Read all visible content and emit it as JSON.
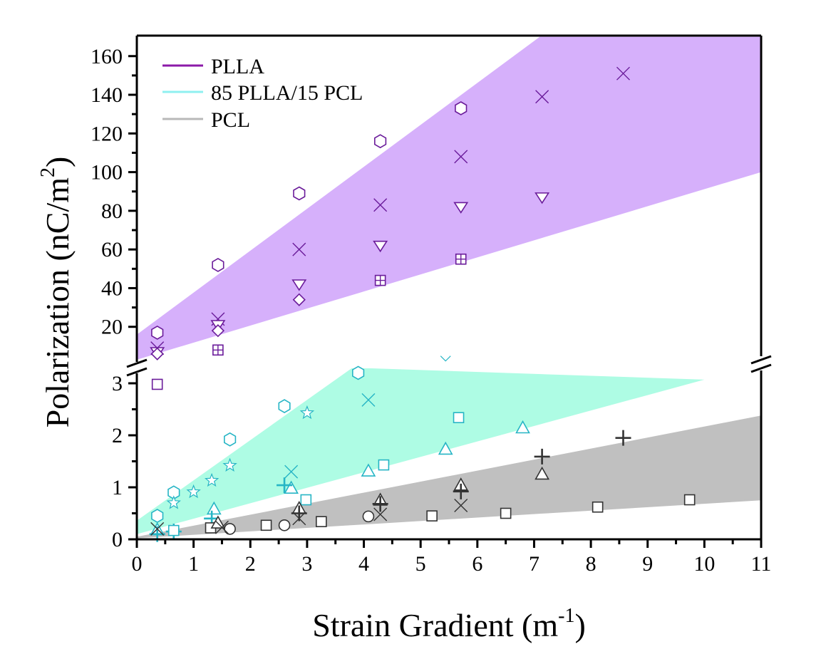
{
  "chart_data": {
    "type": "scatter",
    "title": "",
    "xlabel": "Strain Gradient (m",
    "xlabel_sup": "-1",
    "xlabel_tail": ")",
    "ylabel": "Polarization (nC/m",
    "ylabel_sup": "2",
    "ylabel_tail": ")",
    "xlim": [
      0,
      11
    ],
    "x_ticks": [
      "0",
      "1",
      "2",
      "3",
      "4",
      "5",
      "6",
      "7",
      "8",
      "9",
      "10",
      "11"
    ],
    "y_break": true,
    "ylim_lower": [
      0,
      3.3
    ],
    "ylim_upper": [
      10,
      170
    ],
    "y_ticks_lower": [
      "0",
      "1",
      "2",
      "3"
    ],
    "y_ticks_upper": [
      "20",
      "40",
      "60",
      "80",
      "100",
      "120",
      "140",
      "160"
    ],
    "grid": false,
    "legend_position": "top-left",
    "legend": [
      {
        "label": "PLLA",
        "color": "#8b1aa8"
      },
      {
        "label": "85 PLLA/15 PCL",
        "color": "#8ff0f0"
      },
      {
        "label": "PCL",
        "color": "#b8b8b8"
      }
    ],
    "bands": [
      {
        "series": "PLLA",
        "panel": "upper",
        "fill": "#d6b0fb",
        "polygon": [
          [
            0,
            4
          ],
          [
            0,
            16
          ],
          [
            7.1,
            170
          ],
          [
            11,
            170
          ],
          [
            11,
            100
          ],
          [
            0,
            3
          ]
        ]
      },
      {
        "series": "85 PLLA/15 PCL",
        "panel": "lower",
        "fill": "#aefce4",
        "polygon": [
          [
            0,
            0.05
          ],
          [
            0,
            0.36
          ],
          [
            3.8,
            3.3
          ],
          [
            10,
            3.07
          ],
          [
            0,
            0.1
          ]
        ]
      },
      {
        "series": "PCL",
        "panel": "lower",
        "fill": "#c0c0c0",
        "polygon": [
          [
            0,
            0.02
          ],
          [
            0,
            0.05
          ],
          [
            11,
            2.38
          ],
          [
            11,
            0.75
          ]
        ]
      }
    ],
    "series": [
      {
        "name": "PLLA hexagon",
        "group": "PLLA",
        "marker": "hexagon",
        "color": "#6a1b9a",
        "points": [
          [
            0.36,
            17
          ],
          [
            1.43,
            52
          ],
          [
            2.86,
            89
          ],
          [
            4.29,
            116
          ],
          [
            5.71,
            133
          ]
        ]
      },
      {
        "name": "PLLA cross",
        "group": "PLLA",
        "marker": "x",
        "color": "#6a1b9a",
        "points": [
          [
            0.36,
            9
          ],
          [
            1.43,
            24
          ],
          [
            2.86,
            60
          ],
          [
            4.29,
            83
          ],
          [
            5.71,
            108
          ],
          [
            7.14,
            139
          ],
          [
            8.57,
            151
          ]
        ]
      },
      {
        "name": "PLLA down-triangle",
        "group": "PLLA",
        "marker": "triangle-down",
        "color": "#6a1b9a",
        "points": [
          [
            0.36,
            7
          ],
          [
            1.43,
            21
          ],
          [
            2.86,
            42
          ],
          [
            4.29,
            62
          ],
          [
            5.71,
            82
          ],
          [
            7.14,
            87
          ]
        ]
      },
      {
        "name": "PLLA diamond",
        "group": "PLLA",
        "marker": "diamond",
        "color": "#6a1b9a",
        "points": [
          [
            0.36,
            6
          ],
          [
            1.43,
            18
          ],
          [
            2.86,
            34
          ]
        ]
      },
      {
        "name": "PLLA square-plus",
        "group": "PLLA",
        "marker": "square-plus",
        "color": "#6a1b9a",
        "points": [
          [
            1.43,
            8
          ],
          [
            4.29,
            44
          ],
          [
            5.71,
            55
          ]
        ]
      },
      {
        "name": "PLLA square (lower)",
        "group": "PLLA",
        "marker": "square",
        "color": "#6a1b9a",
        "panel": "lower",
        "points": [
          [
            0.36,
            2.98
          ]
        ]
      },
      {
        "name": "Blend hexagon",
        "group": "85 PLLA/15 PCL",
        "marker": "hexagon",
        "color": "#26b5c5",
        "points": [
          [
            0.36,
            0.45
          ],
          [
            0.65,
            0.9
          ],
          [
            1.64,
            1.92
          ],
          [
            2.6,
            2.56
          ],
          [
            3.9,
            3.2
          ]
        ]
      },
      {
        "name": "Blend star",
        "group": "85 PLLA/15 PCL",
        "marker": "star",
        "color": "#26b5c5",
        "points": [
          [
            0.65,
            0.7
          ],
          [
            1.0,
            0.91
          ],
          [
            1.32,
            1.13
          ],
          [
            1.64,
            1.42
          ],
          [
            3.0,
            2.43
          ]
        ]
      },
      {
        "name": "Blend triangle",
        "group": "85 PLLA/15 PCL",
        "marker": "triangle",
        "color": "#26b5c5",
        "points": [
          [
            0.36,
            0.17
          ],
          [
            1.36,
            0.57
          ],
          [
            2.72,
            0.97
          ],
          [
            4.08,
            1.3
          ],
          [
            5.44,
            1.72
          ],
          [
            6.8,
            2.13
          ]
        ]
      },
      {
        "name": "Blend cross",
        "group": "85 PLLA/15 PCL",
        "marker": "x",
        "color": "#26b5c5",
        "points": [
          [
            2.72,
            1.3
          ],
          [
            4.08,
            2.68
          ]
        ]
      },
      {
        "name": "Blend plus",
        "group": "85 PLLA/15 PCL",
        "marker": "plus",
        "color": "#26b5c5",
        "points": [
          [
            0.36,
            0.1
          ],
          [
            0.65,
            0.15
          ],
          [
            1.32,
            0.4
          ],
          [
            2.6,
            1.04
          ]
        ]
      },
      {
        "name": "Blend square",
        "group": "85 PLLA/15 PCL",
        "marker": "square",
        "color": "#26b5c5",
        "points": [
          [
            0.65,
            0.17
          ],
          [
            2.98,
            0.76
          ],
          [
            4.35,
            1.43
          ],
          [
            5.67,
            2.34
          ]
        ]
      },
      {
        "name": "Blend chevron",
        "group": "85 PLLA/15 PCL",
        "marker": "chevron",
        "color": "#26b5c5",
        "points": [
          [
            5.44,
            3.47
          ]
        ]
      },
      {
        "name": "PCL square",
        "group": "PCL",
        "marker": "square",
        "color": "#333333",
        "points": [
          [
            1.3,
            0.22
          ],
          [
            2.28,
            0.27
          ],
          [
            3.25,
            0.34
          ],
          [
            5.2,
            0.45
          ],
          [
            6.5,
            0.5
          ],
          [
            8.12,
            0.62
          ],
          [
            9.74,
            0.76
          ]
        ]
      },
      {
        "name": "PCL circle",
        "group": "PCL",
        "marker": "circle",
        "color": "#333333",
        "points": [
          [
            1.64,
            0.2
          ],
          [
            2.6,
            0.27
          ],
          [
            4.08,
            0.44
          ]
        ]
      },
      {
        "name": "PCL triangle",
        "group": "PCL",
        "marker": "triangle",
        "color": "#333333",
        "points": [
          [
            1.43,
            0.3
          ],
          [
            2.86,
            0.58
          ],
          [
            4.29,
            0.74
          ],
          [
            5.71,
            1.03
          ],
          [
            7.14,
            1.24
          ]
        ]
      },
      {
        "name": "PCL cross",
        "group": "PCL",
        "marker": "x",
        "color": "#333333",
        "points": [
          [
            0.36,
            0.2
          ],
          [
            1.5,
            0.23
          ],
          [
            2.86,
            0.4
          ],
          [
            4.29,
            0.48
          ],
          [
            5.71,
            0.65
          ]
        ]
      },
      {
        "name": "PCL plus",
        "group": "PCL",
        "marker": "plus",
        "color": "#333333",
        "points": [
          [
            2.86,
            0.5
          ],
          [
            4.29,
            0.68
          ],
          [
            5.71,
            0.92
          ],
          [
            7.14,
            1.59
          ],
          [
            8.57,
            1.95
          ]
        ]
      }
    ]
  }
}
